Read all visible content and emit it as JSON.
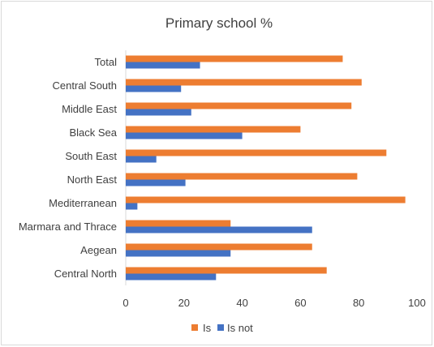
{
  "chart_data": {
    "type": "bar",
    "orientation": "horizontal",
    "title": "Primary school %",
    "categories": [
      "Total",
      "Central South",
      "Middle East",
      "Black Sea",
      "South East",
      "North East",
      "Mediterranean",
      "Marmara and Thrace",
      "Aegean",
      "Central North"
    ],
    "series": [
      {
        "name": "Is",
        "color": "#ed7d31",
        "values": [
          74.5,
          81,
          77.5,
          60,
          89.5,
          79.5,
          96,
          36,
          64,
          69
        ]
      },
      {
        "name": "Is not",
        "color": "#4472c4",
        "values": [
          25.5,
          19,
          22.5,
          40,
          10.5,
          20.5,
          4,
          64,
          36,
          31
        ]
      }
    ],
    "xlim": [
      0,
      100
    ],
    "xticks": [
      0,
      20,
      40,
      60,
      80,
      100
    ],
    "xlabel": "",
    "ylabel": "",
    "grid": false,
    "legend": "bottom"
  }
}
